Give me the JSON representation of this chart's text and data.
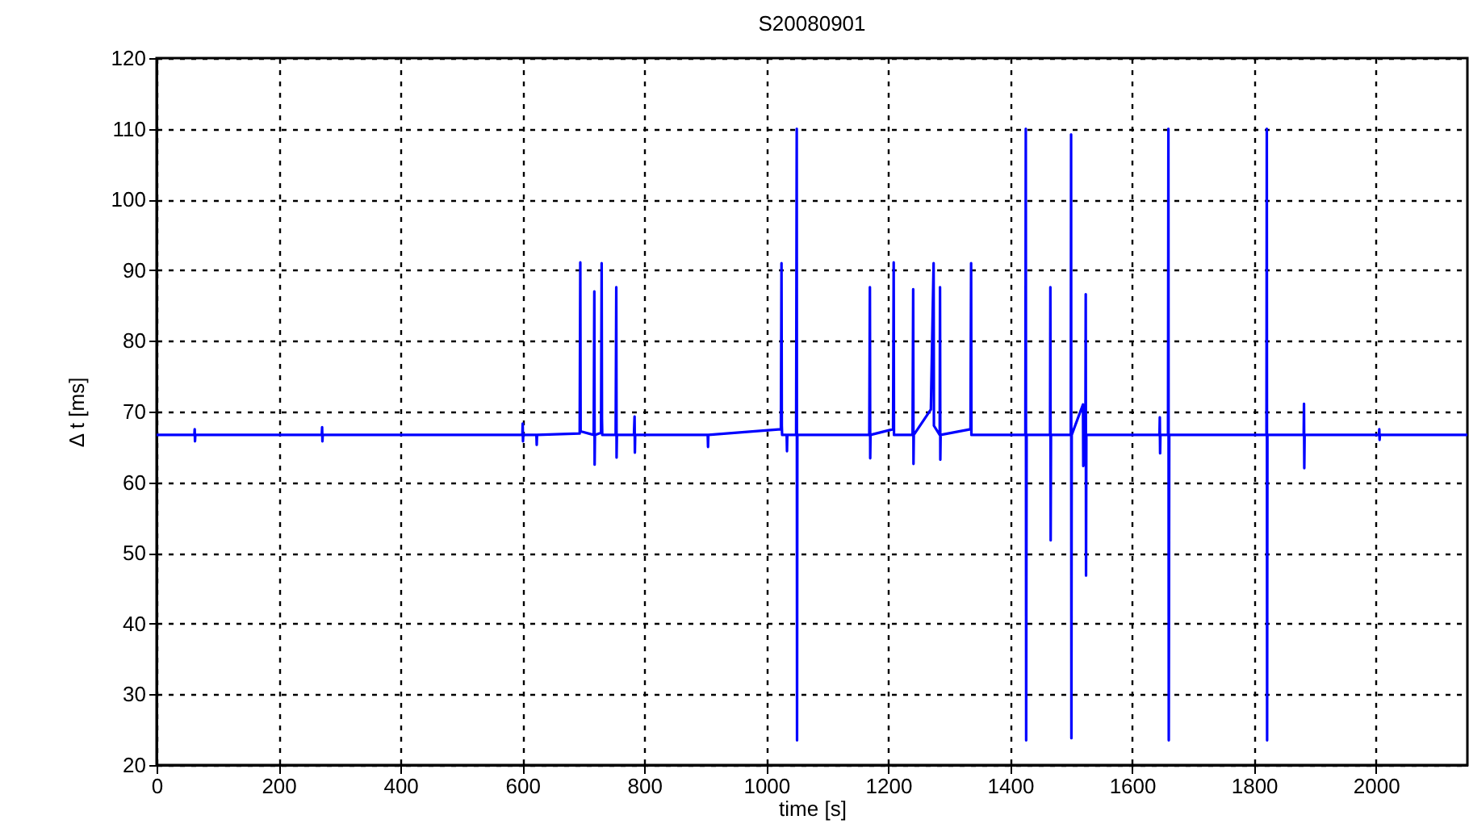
{
  "chart_data": {
    "type": "line",
    "title": "S20080901",
    "xlabel": "time [s]",
    "ylabel": "Δ t [ms]",
    "x": [
      0,
      62,
      62.5,
      63,
      63.5,
      271,
      271.5,
      272,
      272.5,
      600,
      600.5,
      601,
      601.5,
      623,
      623.5,
      624,
      694,
      695,
      695.5,
      717,
      718,
      718.5,
      719,
      729,
      730,
      730.5,
      731,
      753,
      754,
      754.5,
      755,
      783,
      784,
      784.5,
      785,
      904,
      904.5,
      905,
      1024,
      1025,
      1025.5,
      1026,
      1033.5,
      1034,
      1034.5,
      1049,
      1050,
      1050.5,
      1051,
      1169,
      1170,
      1170.5,
      1171,
      1208,
      1209,
      1209.5,
      1240,
      1241,
      1241.5,
      1242,
      1270,
      1274.5,
      1275,
      1284.5,
      1285,
      1285.5,
      1286,
      1335,
      1336,
      1336.5,
      1425,
      1425.7,
      1426.3,
      1427,
      1465.5,
      1466,
      1466.5,
      1467,
      1499.5,
      1500,
      1500.5,
      1501,
      1519.5,
      1520,
      1523.5,
      1524,
      1524.5,
      1525,
      1645,
      1645.5,
      1646,
      1646.5,
      1659,
      1659.6,
      1660.2,
      1661,
      1820.5,
      1821,
      1821.5,
      1822,
      1881.5,
      1882,
      1882.5,
      1883,
      2005,
      2005.5,
      2006,
      2006.5,
      2150
    ],
    "series": [
      {
        "color": "#0000ff",
        "values": [
          66.7,
          66.7,
          67.5,
          65.8,
          66.7,
          66.7,
          67.8,
          65.8,
          66.7,
          66.7,
          68.3,
          65.8,
          66.7,
          66.7,
          65.3,
          66.7,
          66.9,
          91.1,
          67.2,
          66.7,
          87,
          62.5,
          66.7,
          67,
          91,
          69,
          66.7,
          66.7,
          87.6,
          63.5,
          66.7,
          66.7,
          69.3,
          64.2,
          66.7,
          66.7,
          65,
          66.7,
          67.5,
          91,
          68,
          66.7,
          66.7,
          64.4,
          66.7,
          66.7,
          110,
          23.5,
          66.7,
          66.7,
          87.6,
          63.4,
          66.7,
          67.5,
          91.1,
          66.7,
          66.7,
          87.3,
          62.6,
          66.7,
          70.3,
          91,
          68,
          66.7,
          87.6,
          63.2,
          66.7,
          67.5,
          91,
          66.7,
          66.7,
          110,
          23.5,
          66.7,
          66.7,
          87.6,
          51.8,
          66.7,
          66.7,
          109.2,
          23.8,
          66.7,
          71,
          62.3,
          66.7,
          86.6,
          46.8,
          66.7,
          66.7,
          69.2,
          64.1,
          66.7,
          66.7,
          110,
          23.5,
          66.7,
          66.7,
          110,
          23.5,
          66.7,
          66.7,
          71.1,
          62,
          66.7,
          66.7,
          67.5,
          66,
          66.7,
          66.7
        ]
      }
    ],
    "xlim": [
      0,
      2150
    ],
    "xticks": [
      0,
      200,
      400,
      600,
      800,
      1000,
      1200,
      1400,
      1600,
      1800,
      2000
    ],
    "ylim": [
      20,
      120
    ],
    "yticks": [
      20,
      30,
      40,
      50,
      60,
      70,
      80,
      90,
      100,
      110,
      120
    ],
    "grid": true,
    "line_style": "solid"
  }
}
